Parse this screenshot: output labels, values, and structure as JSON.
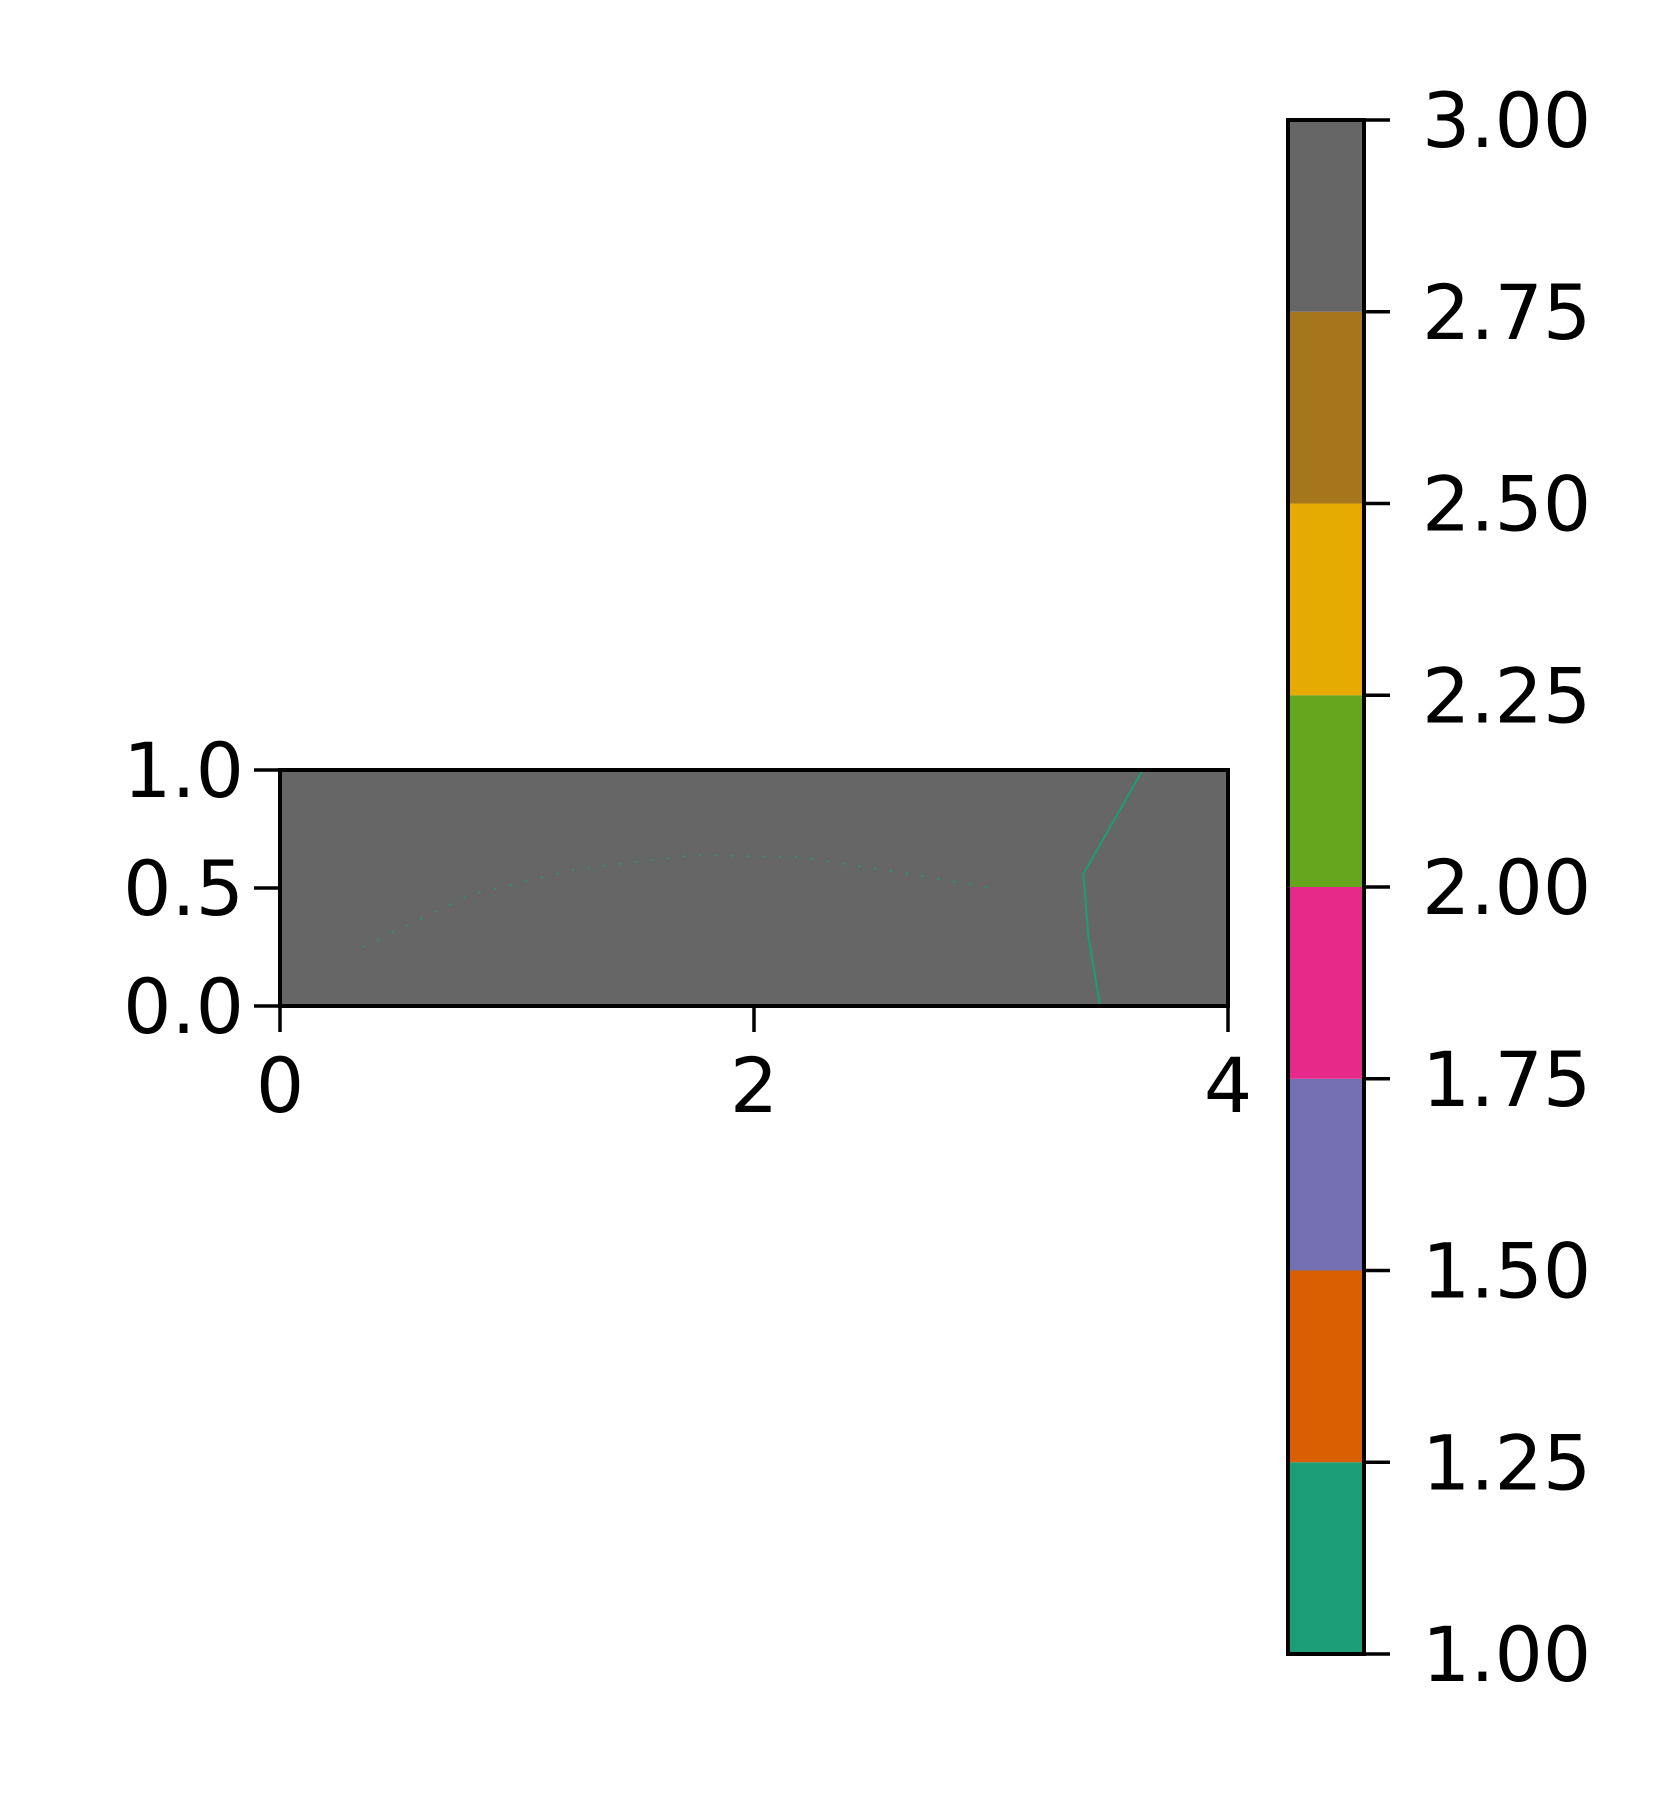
{
  "chart_data": {
    "type": "heatmap",
    "title": "",
    "xlabel": "",
    "ylabel": "",
    "xlim": [
      0,
      4
    ],
    "ylim": [
      0,
      1
    ],
    "xticks": [
      "0",
      "2",
      "4"
    ],
    "yticks": [
      "0.0",
      "0.5",
      "1.0"
    ],
    "grid": false,
    "background_value": 3.0,
    "background_color": "#666666",
    "contour_lines": [
      {
        "value": 1.0,
        "color": "#1b9e77",
        "points": [
          [
            3.64,
            1.0
          ],
          [
            3.39,
            0.56
          ],
          [
            3.41,
            0.3
          ],
          [
            3.46,
            0.0
          ]
        ]
      },
      {
        "value": 1.0,
        "color": "#1b9e77",
        "dotted": true,
        "points": [
          [
            0.35,
            0.25
          ],
          [
            0.8,
            0.47
          ],
          [
            1.25,
            0.58
          ],
          [
            1.75,
            0.64
          ],
          [
            2.2,
            0.63
          ],
          [
            2.65,
            0.56
          ],
          [
            3.0,
            0.5
          ]
        ]
      }
    ],
    "colorbar": {
      "ticks": [
        "1.00",
        "1.25",
        "1.50",
        "1.75",
        "2.00",
        "2.25",
        "2.50",
        "2.75",
        "3.00"
      ],
      "range": [
        1.0,
        3.0
      ],
      "levels": [
        {
          "from": 1.0,
          "to": 1.25,
          "color": "#1b9e77"
        },
        {
          "from": 1.25,
          "to": 1.5,
          "color": "#d95f02"
        },
        {
          "from": 1.5,
          "to": 1.75,
          "color": "#7570b3"
        },
        {
          "from": 1.75,
          "to": 2.0,
          "color": "#e7298a"
        },
        {
          "from": 2.0,
          "to": 2.25,
          "color": "#66a61e"
        },
        {
          "from": 2.25,
          "to": 2.5,
          "color": "#e6ab02"
        },
        {
          "from": 2.5,
          "to": 2.75,
          "color": "#a6761d"
        },
        {
          "from": 2.75,
          "to": 3.0,
          "color": "#666666"
        }
      ]
    }
  }
}
